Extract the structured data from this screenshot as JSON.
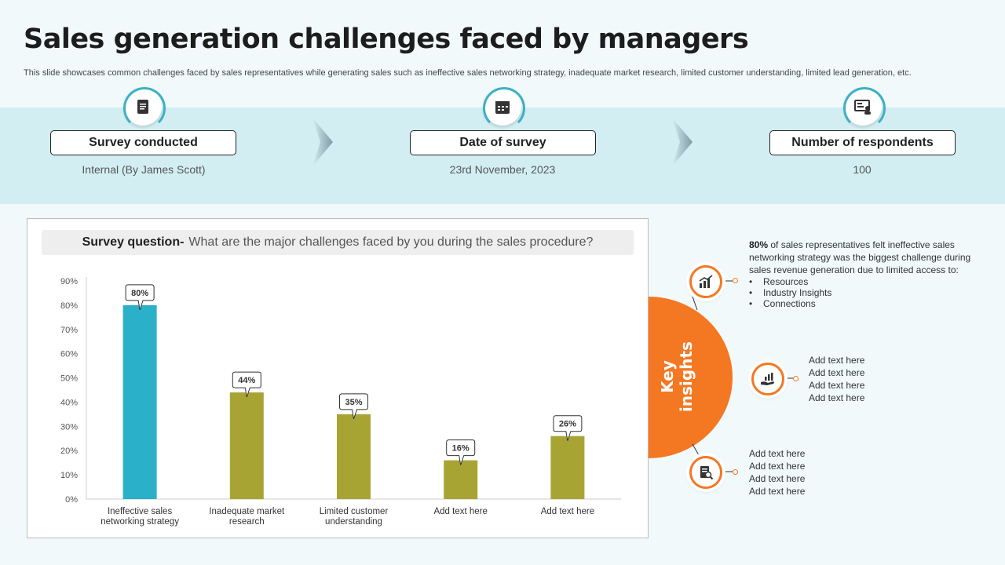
{
  "title": "Sales generation challenges faced by managers",
  "subtitle": "This slide showcases common challenges faced by sales representatives while generating sales such as ineffective sales networking strategy, inadequate market research, limited customer understanding, limited lead generation, etc.",
  "stats": [
    {
      "label": "Survey conducted",
      "value": "Internal  (By James Scott)",
      "icon": "clipboard-icon"
    },
    {
      "label": "Date of survey",
      "value": "23rd November,  2023",
      "icon": "calendar-icon"
    },
    {
      "label": "Number of respondents",
      "value": "100",
      "icon": "respondents-icon"
    }
  ],
  "question": {
    "prefix": "Survey question-",
    "text": "What are the major challenges faced by you during the sales procedure?"
  },
  "chart_data": {
    "type": "bar",
    "categories": [
      "Ineffective sales networking strategy",
      "Inadequate market research",
      "Limited customer understanding",
      "Add text here",
      "Add text here"
    ],
    "values": [
      80,
      44,
      35,
      16,
      26
    ],
    "data_labels": [
      "80%",
      "44%",
      "35%",
      "16%",
      "26%"
    ],
    "yticks": [
      "0%",
      "10%",
      "20%",
      "30%",
      "40%",
      "50%",
      "60%",
      "70%",
      "80%",
      "90%"
    ],
    "ylim": [
      0,
      90
    ],
    "colors": [
      "#2ab0c8",
      "#a8a434",
      "#a8a434",
      "#a8a434",
      "#a8a434"
    ],
    "title": "",
    "xlabel": "",
    "ylabel": ""
  },
  "insights": {
    "label": "Key insights",
    "items": [
      {
        "bold": "80%",
        "text": " of sales representatives  felt ineffective  sales networking strategy was the biggest challenge during sales revenue  generation due to limited access to:",
        "bullets": [
          "Resources",
          "Industry Insights",
          "Connections"
        ],
        "icon": "growth-chart-icon"
      },
      {
        "lines": [
          "Add text here",
          "Add text here",
          "Add text here",
          "Add text here"
        ],
        "icon": "hand-chart-icon"
      },
      {
        "lines": [
          "Add text here",
          "Add text here",
          "Add text here",
          "Add text here"
        ],
        "icon": "report-icon"
      }
    ]
  },
  "colors": {
    "accent": "#f47722",
    "teal": "#2ab0c8",
    "olive": "#a8a434",
    "band": "#d2eef3"
  }
}
